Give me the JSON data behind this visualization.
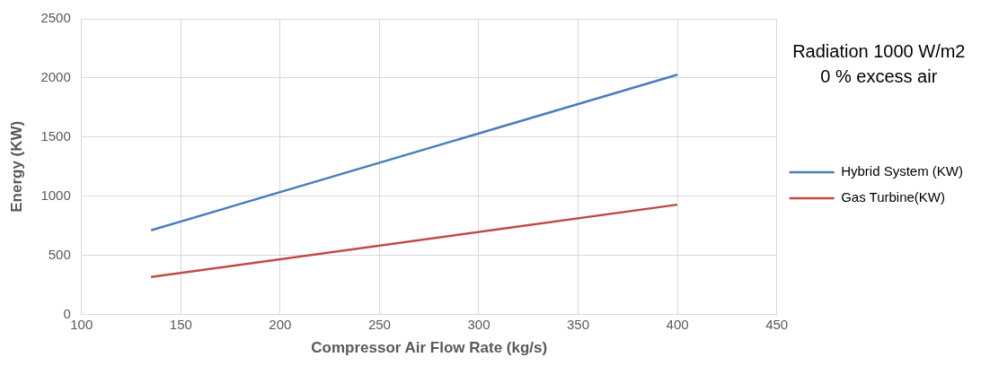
{
  "chart_data": {
    "type": "line",
    "xlabel": "Compressor Air Flow Rate (kg/s)",
    "ylabel": "Energy (KW)",
    "annotations": [
      "Radiation 1000 W/m2",
      "0 % excess air"
    ],
    "x": [
      135,
      400
    ],
    "series": [
      {
        "name": "Hybrid System (KW)",
        "color": "#4a7ebb",
        "values": [
          712,
          2028
        ]
      },
      {
        "name": "Gas Turbine(KW)",
        "color": "#be4b48",
        "values": [
          317,
          929
        ]
      }
    ],
    "xlim": [
      100,
      450
    ],
    "xticks": [
      100,
      150,
      200,
      250,
      300,
      350,
      400,
      450
    ],
    "ylim": [
      0,
      2500
    ],
    "yticks": [
      0,
      500,
      1000,
      1500,
      2000,
      2500
    ],
    "grid": true,
    "legend": "right",
    "marker": "none",
    "line_style": "solid"
  }
}
